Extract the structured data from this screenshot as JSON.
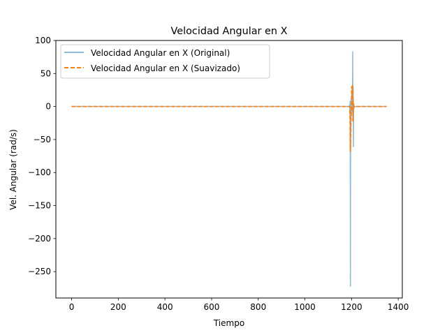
{
  "chart_data": {
    "type": "line",
    "title": "Velocidad Angular en X",
    "xlabel": "Tiempo",
    "ylabel": "Vel. Angular (rad/s)",
    "xlim": [
      -67.5,
      1417.5
    ],
    "ylim": [
      -290,
      100
    ],
    "xticks": [
      0,
      200,
      400,
      600,
      800,
      1000,
      1200,
      1400
    ],
    "yticks": [
      100,
      50,
      0,
      -50,
      -100,
      -150,
      -200,
      -250
    ],
    "ytick_labels": [
      "100",
      "50",
      "0",
      "−50",
      "−100",
      "−150",
      "−200",
      "−250"
    ],
    "grid": false,
    "legend_position": "top-left",
    "series": [
      {
        "name": "Velocidad Angular en X (Original)",
        "color": "#1f77b4",
        "style": "solid",
        "x": [
          0,
          1150,
          1190,
          1192,
          1193,
          1194,
          1195,
          1196,
          1197,
          1198,
          1199,
          1200,
          1201,
          1202,
          1203,
          1204,
          1205,
          1206,
          1207,
          1208,
          1209,
          1210,
          1212,
          1220,
          1350
        ],
        "y": [
          0,
          0,
          0,
          3,
          -12,
          8,
          -272,
          5,
          -40,
          12,
          -15,
          2,
          18,
          -8,
          25,
          8,
          83,
          -10,
          30,
          -61,
          5,
          -3,
          0,
          0,
          0
        ]
      },
      {
        "name": "Velocidad Angular en X (Suavizado)",
        "color": "#ff7f0e",
        "style": "dashed",
        "x": [
          0,
          1150,
          1190,
          1192,
          1193,
          1194,
          1195,
          1196,
          1197,
          1198,
          1199,
          1200,
          1201,
          1202,
          1203,
          1204,
          1205,
          1206,
          1207,
          1208,
          1209,
          1210,
          1212,
          1220,
          1350
        ],
        "y": [
          0,
          0,
          0,
          0,
          -3,
          -35,
          -68,
          -50,
          -20,
          -8,
          -3,
          5,
          30,
          15,
          20,
          32,
          20,
          -22,
          10,
          -5,
          3,
          0,
          0,
          0,
          0
        ]
      }
    ]
  }
}
